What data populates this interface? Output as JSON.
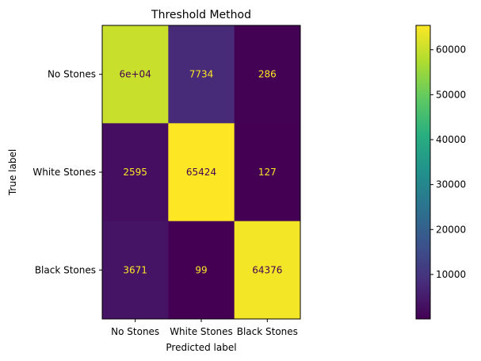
{
  "chart_data": {
    "type": "heatmap",
    "title": "Threshold Method",
    "xlabel": "Predicted label",
    "ylabel": "True label",
    "x_categories": [
      "No Stones",
      "White Stones",
      "Black Stones"
    ],
    "y_categories": [
      "No Stones",
      "White Stones",
      "Black Stones"
    ],
    "values": [
      [
        60000,
        7734,
        286
      ],
      [
        2595,
        65424,
        127
      ],
      [
        3671,
        99,
        64376
      ]
    ],
    "cell_labels": [
      [
        "6e+04",
        "7734",
        "286"
      ],
      [
        "2595",
        "65424",
        "127"
      ],
      [
        "3671",
        "99",
        "64376"
      ]
    ],
    "colormap": "viridis",
    "colorbar": {
      "min": 99,
      "max": 65424,
      "ticks": [
        10000,
        20000,
        30000,
        40000,
        50000,
        60000
      ],
      "tick_labels": [
        "10000",
        "20000",
        "30000",
        "40000",
        "50000",
        "60000"
      ]
    },
    "colors": {
      "text_on_dark": "#fde725",
      "text_on_light": "#440154"
    }
  }
}
